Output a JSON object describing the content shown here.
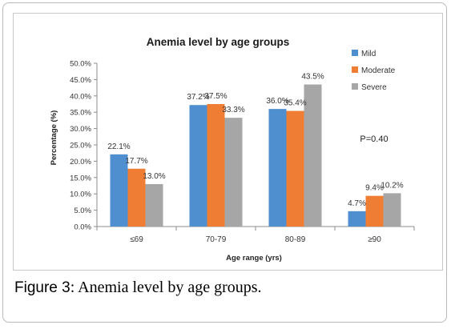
{
  "chart_data": {
    "type": "bar",
    "title": "Anemia level by age groups",
    "xlabel": "Age range (yrs)",
    "ylabel": "Percentage (%)",
    "ylim": [
      0,
      50
    ],
    "y_ticks": [
      "0.0%",
      "5.0%",
      "10.0%",
      "15.0%",
      "20.0%",
      "25.0%",
      "30.0%",
      "35.0%",
      "40.0%",
      "45.0%",
      "50.0%"
    ],
    "categories": [
      "≤69",
      "70-79",
      "80-89",
      "≥90"
    ],
    "series": [
      {
        "name": "Mild",
        "color": "#4f8fd0",
        "values": [
          22.1,
          37.2,
          36.0,
          4.7
        ],
        "labels": [
          "22.1%",
          "37.2%",
          "36.0%",
          "4.7%"
        ]
      },
      {
        "name": "Moderate",
        "color": "#ef7d34",
        "values": [
          17.7,
          37.5,
          35.4,
          9.4
        ],
        "labels": [
          "17.7%",
          "37.5%",
          "35.4%",
          "9.4%"
        ]
      },
      {
        "name": "Severe",
        "color": "#a6a6a6",
        "values": [
          13.0,
          33.3,
          43.5,
          10.2
        ],
        "labels": [
          "13.0%",
          "33.3%",
          "43.5%",
          "10.2%"
        ]
      }
    ],
    "annotation": "P=0.40",
    "legend_position": "top-right",
    "grid": false
  },
  "caption": {
    "label": "Figure 3",
    "text": ": Anemia level by age groups."
  }
}
